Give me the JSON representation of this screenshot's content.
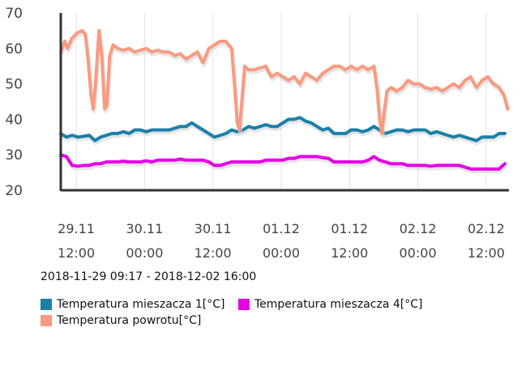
{
  "chart_data": {
    "type": "line",
    "ylim": [
      20,
      70
    ],
    "y_ticks": [
      "20",
      "30",
      "40",
      "50",
      "60",
      "70"
    ],
    "x_ticks": [
      {
        "date": "29.11",
        "time": "12:00",
        "t": 2.7167
      },
      {
        "date": "30.11",
        "time": "00:00",
        "t": 14.7167
      },
      {
        "date": "30.11",
        "time": "12:00",
        "t": 26.7167
      },
      {
        "date": "01.12",
        "time": "00:00",
        "t": 38.7167
      },
      {
        "date": "01.12",
        "time": "12:00",
        "t": 50.7167
      },
      {
        "date": "02.12",
        "time": "00:00",
        "t": 62.7167
      },
      {
        "date": "02.12",
        "time": "12:00",
        "t": 74.7167
      }
    ],
    "xlim_hours": [
      0,
      78.7167
    ],
    "x_unit": "hours since 2018-11-29 09:17",
    "series": [
      {
        "name": "Temperatura mieszacza 1[°C]",
        "color": "#1a80a8",
        "points": [
          [
            0,
            36
          ],
          [
            1,
            35
          ],
          [
            2,
            35.5
          ],
          [
            3,
            35
          ],
          [
            4,
            35.2
          ],
          [
            5,
            35.5
          ],
          [
            6,
            34
          ],
          [
            7,
            35
          ],
          [
            8,
            35.5
          ],
          [
            9,
            36
          ],
          [
            10,
            36
          ],
          [
            11,
            36.5
          ],
          [
            12,
            36
          ],
          [
            13,
            37
          ],
          [
            14,
            37
          ],
          [
            15,
            36.5
          ],
          [
            16,
            37
          ],
          [
            17,
            37
          ],
          [
            18,
            37
          ],
          [
            19,
            37
          ],
          [
            20,
            37.5
          ],
          [
            21,
            38
          ],
          [
            22,
            38
          ],
          [
            23,
            39
          ],
          [
            24,
            38
          ],
          [
            25,
            37
          ],
          [
            26,
            36
          ],
          [
            27,
            35
          ],
          [
            28,
            35.5
          ],
          [
            29,
            36
          ],
          [
            30,
            37
          ],
          [
            31,
            36.5
          ],
          [
            32,
            37
          ],
          [
            33,
            38
          ],
          [
            34,
            37.5
          ],
          [
            35,
            38
          ],
          [
            36,
            38.5
          ],
          [
            37,
            38
          ],
          [
            38,
            38
          ],
          [
            39,
            39
          ],
          [
            40,
            40
          ],
          [
            41,
            40
          ],
          [
            42,
            40.5
          ],
          [
            43,
            39.5
          ],
          [
            44,
            39
          ],
          [
            45,
            38
          ],
          [
            46,
            37
          ],
          [
            47,
            37.5
          ],
          [
            48,
            36
          ],
          [
            49,
            36
          ],
          [
            50,
            36
          ],
          [
            51,
            37
          ],
          [
            52,
            37
          ],
          [
            53,
            36.5
          ],
          [
            54,
            37
          ],
          [
            55,
            38
          ],
          [
            56,
            37
          ],
          [
            57,
            36
          ],
          [
            58,
            36.5
          ],
          [
            59,
            37
          ],
          [
            60,
            37
          ],
          [
            61,
            36.5
          ],
          [
            62,
            37
          ],
          [
            63,
            37
          ],
          [
            64,
            37
          ],
          [
            65,
            36
          ],
          [
            66,
            36.5
          ],
          [
            67,
            36
          ],
          [
            68,
            35.5
          ],
          [
            69,
            35
          ],
          [
            70,
            35.5
          ],
          [
            71,
            35
          ],
          [
            72,
            34.5
          ],
          [
            73,
            34
          ],
          [
            74,
            35
          ],
          [
            75,
            35
          ],
          [
            76,
            35
          ],
          [
            77,
            36
          ],
          [
            78,
            36
          ]
        ]
      },
      {
        "name": "Temperatura mieszacza 4[°C]",
        "color": "#e600e6",
        "points": [
          [
            0,
            30
          ],
          [
            1,
            29.5
          ],
          [
            2,
            27
          ],
          [
            3,
            26.8
          ],
          [
            4,
            27
          ],
          [
            5,
            27
          ],
          [
            6,
            27.5
          ],
          [
            7,
            27.5
          ],
          [
            8,
            28
          ],
          [
            9,
            28
          ],
          [
            10,
            28
          ],
          [
            11,
            28.2
          ],
          [
            12,
            28
          ],
          [
            13,
            28
          ],
          [
            14,
            28
          ],
          [
            15,
            28.3
          ],
          [
            16,
            28
          ],
          [
            17,
            28.5
          ],
          [
            18,
            28.5
          ],
          [
            19,
            28.5
          ],
          [
            20,
            28.5
          ],
          [
            21,
            28.8
          ],
          [
            22,
            28.5
          ],
          [
            23,
            28.5
          ],
          [
            24,
            28.5
          ],
          [
            25,
            28.5
          ],
          [
            26,
            28
          ],
          [
            27,
            27
          ],
          [
            28,
            27
          ],
          [
            29,
            27.5
          ],
          [
            30,
            28
          ],
          [
            31,
            28
          ],
          [
            32,
            28
          ],
          [
            33,
            28
          ],
          [
            34,
            28
          ],
          [
            35,
            28
          ],
          [
            36,
            28.5
          ],
          [
            37,
            28.5
          ],
          [
            38,
            28.5
          ],
          [
            39,
            28.5
          ],
          [
            40,
            29
          ],
          [
            41,
            29
          ],
          [
            42,
            29.5
          ],
          [
            43,
            29.5
          ],
          [
            44,
            29.5
          ],
          [
            45,
            29.5
          ],
          [
            46,
            29.2
          ],
          [
            47,
            29
          ],
          [
            48,
            28
          ],
          [
            49,
            28
          ],
          [
            50,
            28
          ],
          [
            51,
            28
          ],
          [
            52,
            28
          ],
          [
            53,
            28
          ],
          [
            54,
            28.5
          ],
          [
            55,
            29.5
          ],
          [
            56,
            28.5
          ],
          [
            57,
            28
          ],
          [
            58,
            27.5
          ],
          [
            59,
            27.5
          ],
          [
            60,
            27.5
          ],
          [
            61,
            27
          ],
          [
            62,
            27
          ],
          [
            63,
            27
          ],
          [
            64,
            27
          ],
          [
            65,
            26.8
          ],
          [
            66,
            27
          ],
          [
            67,
            27
          ],
          [
            68,
            27
          ],
          [
            69,
            27
          ],
          [
            70,
            27
          ],
          [
            71,
            26.5
          ],
          [
            72,
            26
          ],
          [
            73,
            26
          ],
          [
            74,
            26
          ],
          [
            75,
            26
          ],
          [
            76,
            26
          ],
          [
            77,
            26
          ],
          [
            78,
            27.5
          ]
        ]
      },
      {
        "name": "Temperatura powrotu[°C]",
        "color": "#fa9a80",
        "points": [
          [
            0,
            59
          ],
          [
            0.7,
            62
          ],
          [
            1.2,
            60
          ],
          [
            2,
            63
          ],
          [
            3,
            64.5
          ],
          [
            3.8,
            65
          ],
          [
            4.3,
            64
          ],
          [
            4.8,
            57
          ],
          [
            5.3,
            47
          ],
          [
            5.7,
            43
          ],
          [
            6.1,
            50
          ],
          [
            6.7,
            65
          ],
          [
            7.2,
            58
          ],
          [
            7.7,
            43
          ],
          [
            8.1,
            44
          ],
          [
            8.6,
            58
          ],
          [
            9.2,
            61
          ],
          [
            10,
            60
          ],
          [
            11,
            59.5
          ],
          [
            12,
            60
          ],
          [
            13,
            59
          ],
          [
            14,
            59.5
          ],
          [
            15,
            60
          ],
          [
            16,
            59
          ],
          [
            17,
            59.5
          ],
          [
            18,
            59
          ],
          [
            19,
            59
          ],
          [
            20,
            58
          ],
          [
            21,
            58.5
          ],
          [
            22,
            57
          ],
          [
            23,
            58
          ],
          [
            24,
            59
          ],
          [
            25,
            56
          ],
          [
            26,
            60
          ],
          [
            27,
            61
          ],
          [
            28,
            62
          ],
          [
            29,
            62
          ],
          [
            30,
            60
          ],
          [
            30.5,
            50
          ],
          [
            31,
            39
          ],
          [
            31.4,
            37
          ],
          [
            31.8,
            45
          ],
          [
            32.3,
            55
          ],
          [
            33,
            54
          ],
          [
            34,
            54
          ],
          [
            35,
            54.5
          ],
          [
            36,
            55
          ],
          [
            37,
            52
          ],
          [
            38,
            53
          ],
          [
            39,
            52
          ],
          [
            40,
            51
          ],
          [
            41,
            52
          ],
          [
            42,
            50
          ],
          [
            43,
            53
          ],
          [
            44,
            52
          ],
          [
            45,
            51
          ],
          [
            46,
            53
          ],
          [
            47,
            54
          ],
          [
            48,
            55
          ],
          [
            49,
            55
          ],
          [
            50,
            54
          ],
          [
            51,
            55
          ],
          [
            52,
            54
          ],
          [
            53,
            55
          ],
          [
            54,
            54
          ],
          [
            55,
            55
          ],
          [
            55.6,
            48
          ],
          [
            56,
            40
          ],
          [
            56.4,
            36
          ],
          [
            56.8,
            42
          ],
          [
            57.3,
            48
          ],
          [
            58,
            49
          ],
          [
            59,
            48
          ],
          [
            60,
            49
          ],
          [
            61,
            51
          ],
          [
            62,
            50
          ],
          [
            63,
            50
          ],
          [
            64,
            49
          ],
          [
            65,
            48.5
          ],
          [
            66,
            49
          ],
          [
            67,
            48
          ],
          [
            68,
            49
          ],
          [
            69,
            50
          ],
          [
            70,
            49
          ],
          [
            71,
            51
          ],
          [
            72,
            52
          ],
          [
            73,
            49
          ],
          [
            74,
            51
          ],
          [
            75,
            52
          ],
          [
            76,
            50
          ],
          [
            77,
            49
          ],
          [
            77.8,
            47
          ],
          [
            78.5,
            43
          ]
        ]
      }
    ]
  },
  "date_range": "2018-11-29 09:17 - 2018-12-02 16:00",
  "legend": [
    {
      "label": "Temperatura mieszacza 1[°C]",
      "color": "#1a80a8"
    },
    {
      "label": "Temperatura mieszacza 4[°C]",
      "color": "#e600e6"
    },
    {
      "label": "Temperatura powrotu[°C]",
      "color": "#fa9a80"
    }
  ]
}
